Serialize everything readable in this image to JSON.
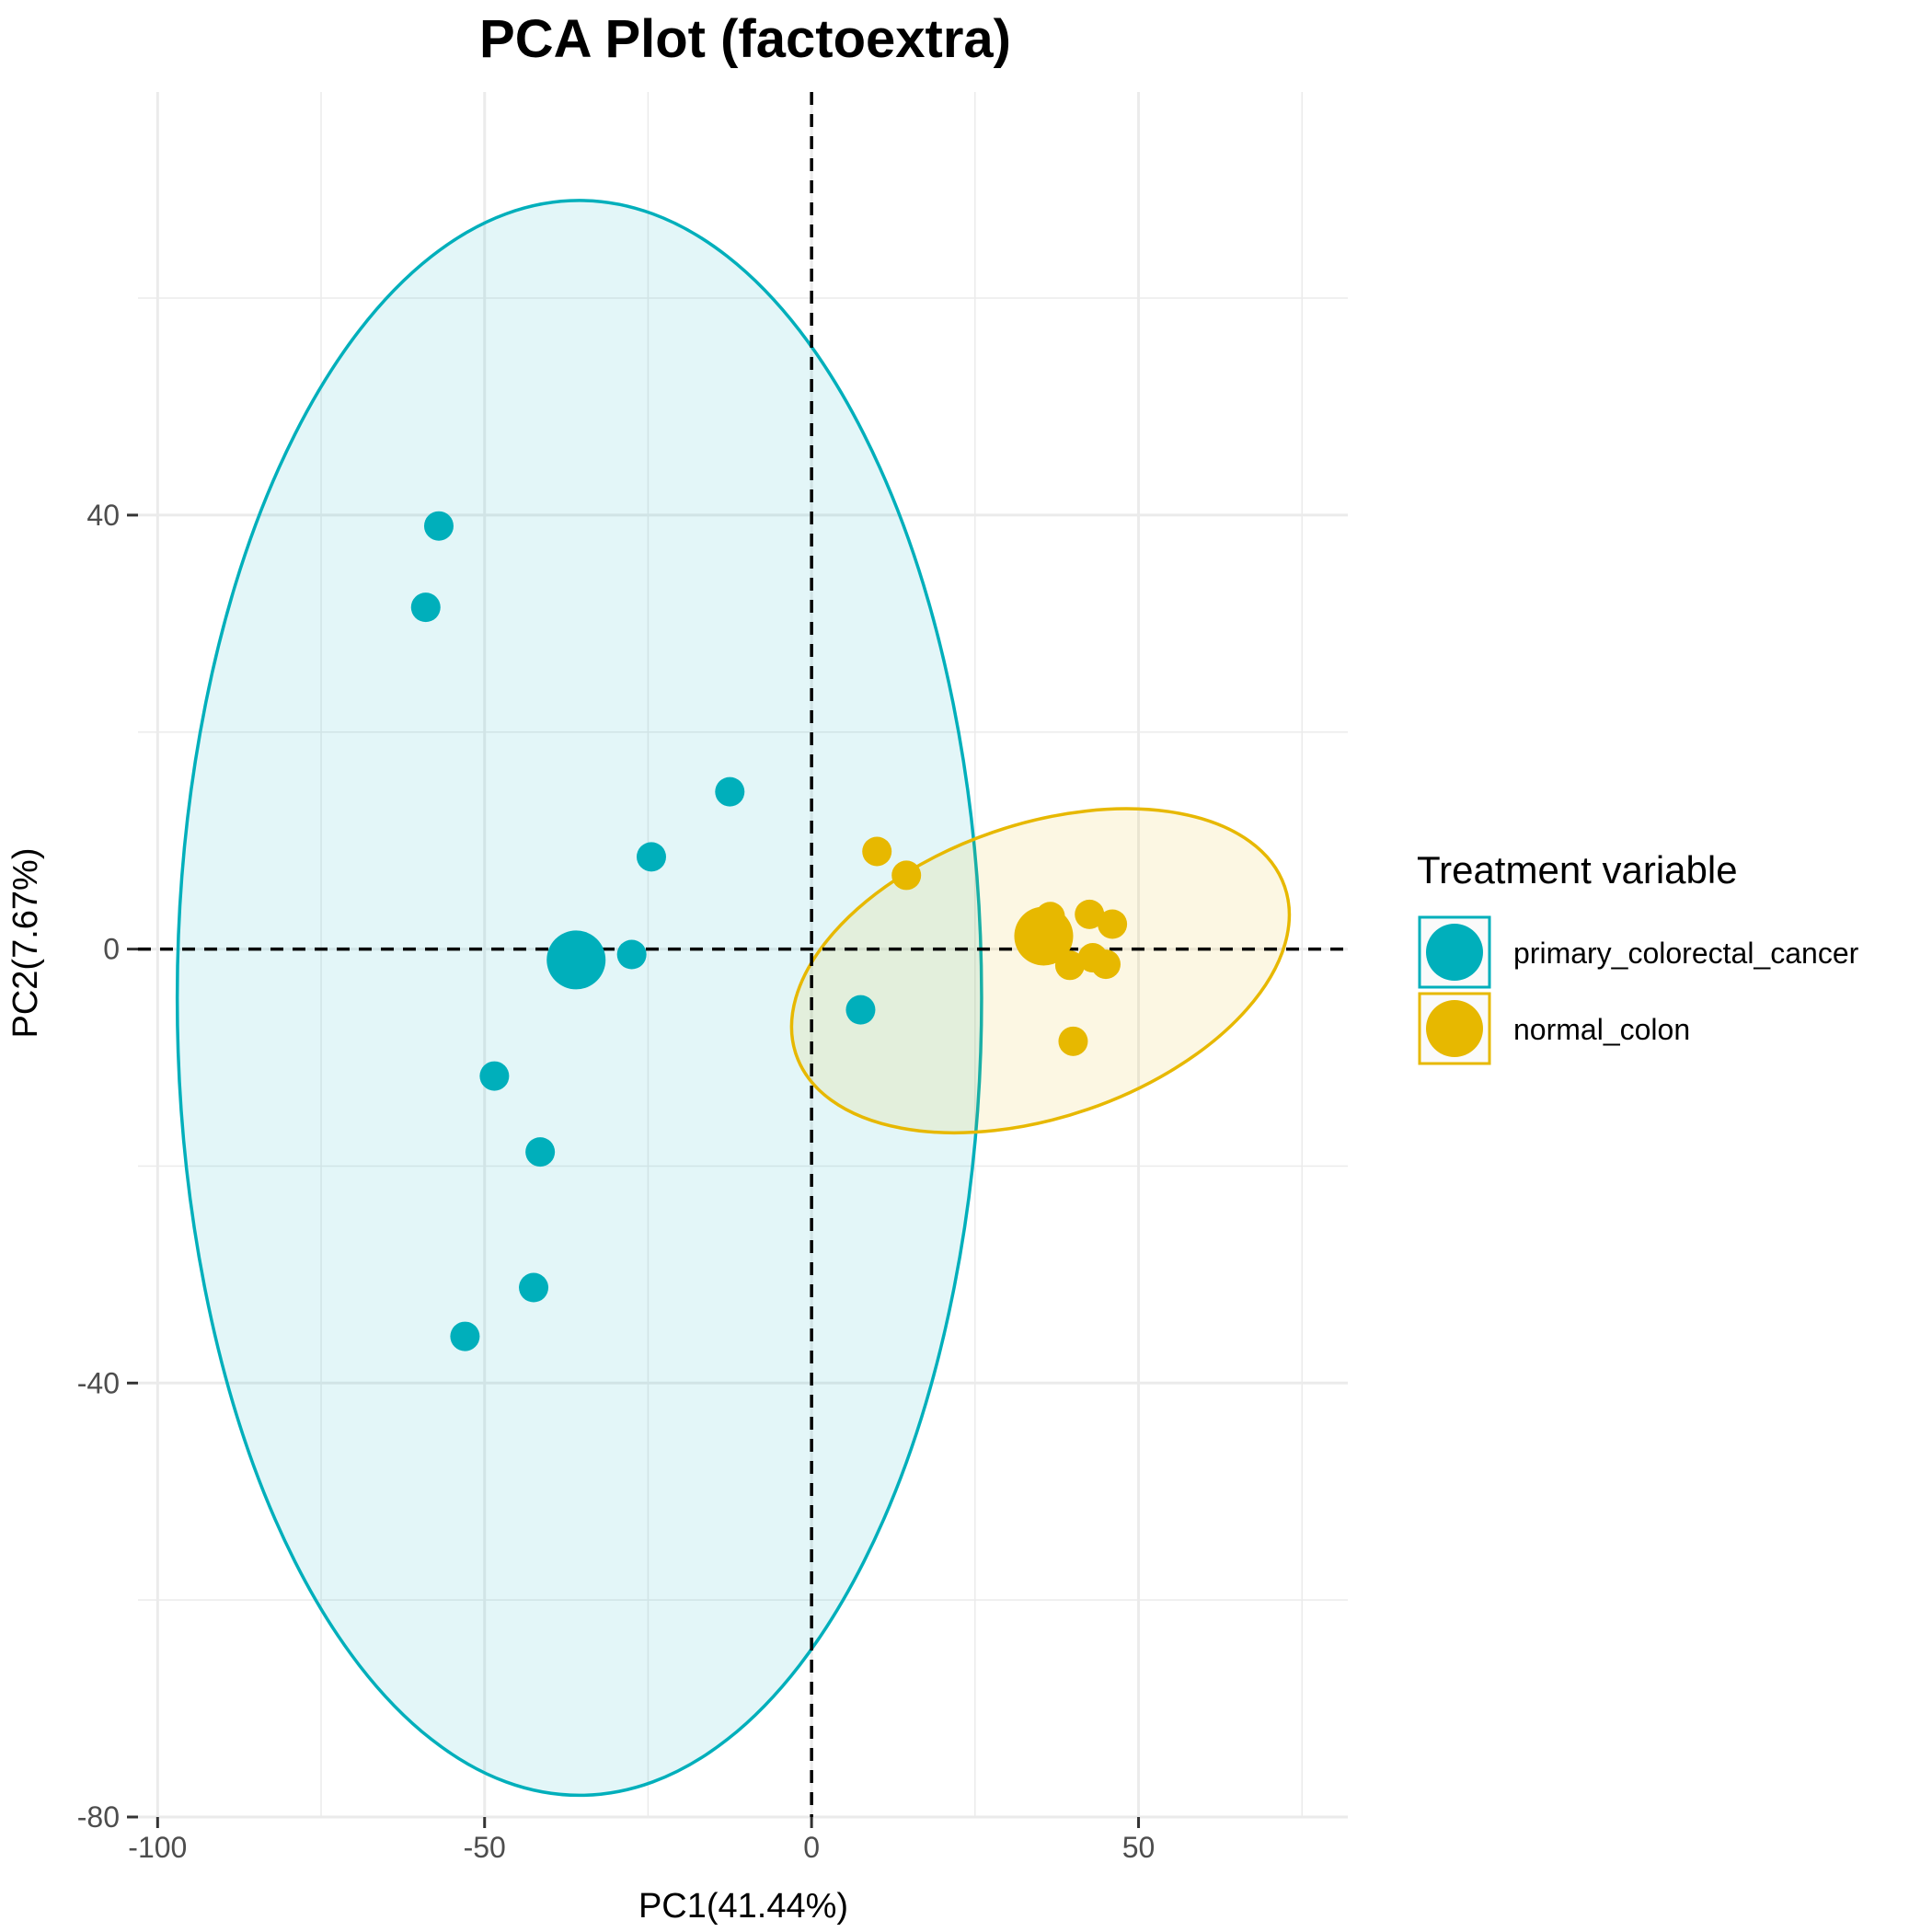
{
  "chart_data": {
    "type": "scatter",
    "title": "PCA Plot (factoextra)",
    "xlabel": "PC1(41.44%)",
    "ylabel": "PC2(7.67%)",
    "xlim": [
      -103,
      82
    ],
    "ylim": [
      -80,
      79
    ],
    "x_ticks": [
      -100,
      -50,
      0,
      50
    ],
    "x_tick_labels": [
      "-100",
      "-50",
      "0",
      "50"
    ],
    "y_ticks": [
      -80,
      -40,
      0,
      40
    ],
    "y_tick_labels": [
      "-80",
      "-40",
      "0",
      "40"
    ],
    "grid": true,
    "reference_lines": {
      "x": 0,
      "y": 0,
      "style": "dashed"
    },
    "legend": {
      "title": "Treatment variable",
      "position": "right"
    },
    "series": [
      {
        "name": "primary_colorectal_cancer",
        "color": "#00AFBB",
        "points": [
          {
            "x": -57,
            "y": 39
          },
          {
            "x": -59,
            "y": 31.5
          },
          {
            "x": -12.5,
            "y": 14.5
          },
          {
            "x": -24.5,
            "y": 8.5
          },
          {
            "x": -27.5,
            "y": -0.5
          },
          {
            "x": -48.5,
            "y": -11.7
          },
          {
            "x": -41.5,
            "y": -18.7
          },
          {
            "x": -42.5,
            "y": -31.2
          },
          {
            "x": -53,
            "y": -35.7
          },
          {
            "x": 7.5,
            "y": -5.6
          }
        ],
        "centroid": {
          "x": -36,
          "y": -1
        },
        "ellipse": {
          "cx": -35.5,
          "cy": -4.5,
          "rx": 61.5,
          "ry": 73.5,
          "angle": 0
        }
      },
      {
        "name": "normal_colon",
        "color": "#E7B800",
        "points": [
          {
            "x": 10,
            "y": 9
          },
          {
            "x": 14.5,
            "y": 6.8
          },
          {
            "x": 36.5,
            "y": 3
          },
          {
            "x": 42.5,
            "y": 3.2
          },
          {
            "x": 46,
            "y": 2.3
          },
          {
            "x": 43,
            "y": -0.8
          },
          {
            "x": 45,
            "y": -1.4
          },
          {
            "x": 39.5,
            "y": -1.5
          },
          {
            "x": 40,
            "y": -8.5
          }
        ],
        "centroid": {
          "x": 35.5,
          "y": 1.2
        },
        "ellipse": {
          "cx": 35,
          "cy": -2,
          "rx": 39.5,
          "ry": 13.5,
          "angle": -19
        }
      }
    ]
  }
}
